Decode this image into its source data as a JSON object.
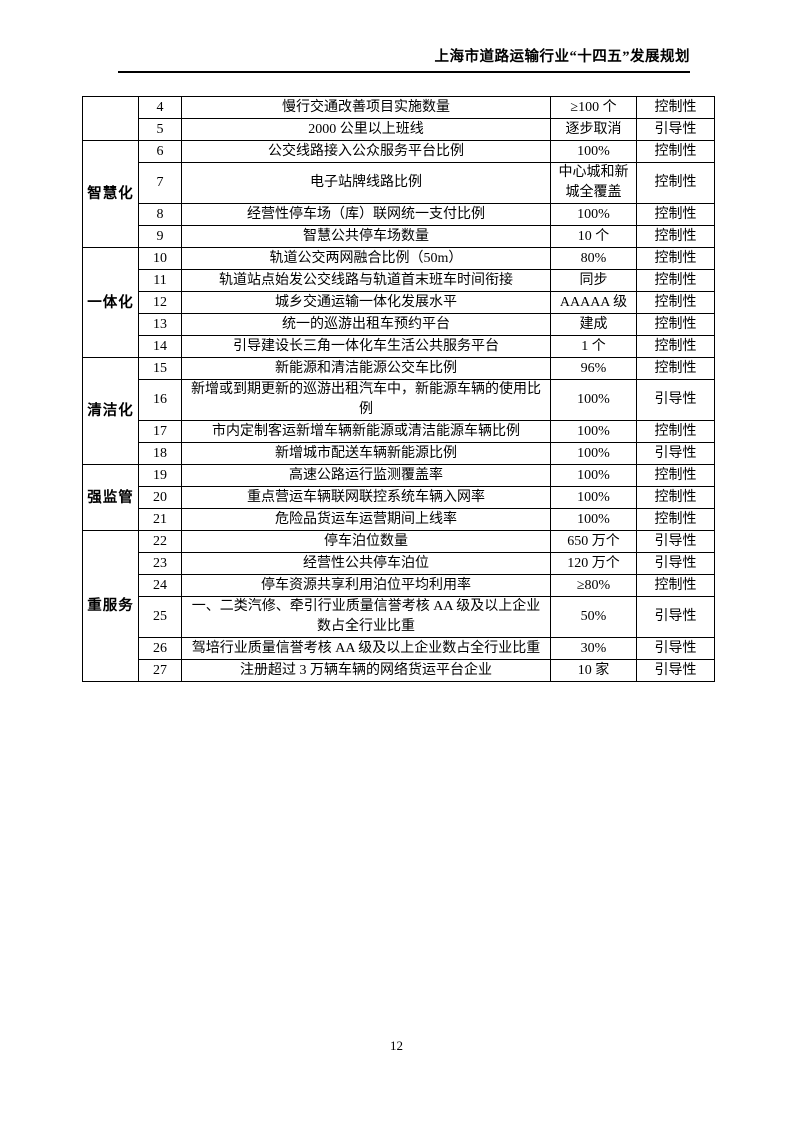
{
  "header": {
    "title": "上海市道路运输行业“十四五”发展规划"
  },
  "table": {
    "groups": [
      {
        "category": "",
        "rows": [
          {
            "no": "4",
            "item": "慢行交通改善项目实施数量",
            "target": "≥100 个",
            "type": "控制性"
          },
          {
            "no": "5",
            "item": "2000 公里以上班线",
            "target": "逐步取消",
            "type": "引导性"
          }
        ]
      },
      {
        "category": "智慧化",
        "rows": [
          {
            "no": "6",
            "item": "公交线路接入公众服务平台比例",
            "target": "100%",
            "type": "控制性"
          },
          {
            "no": "7",
            "item": "电子站牌线路比例",
            "target": "中心城和新城全覆盖",
            "type": "控制性"
          },
          {
            "no": "8",
            "item": "经营性停车场（库）联网统一支付比例",
            "target": "100%",
            "type": "控制性"
          },
          {
            "no": "9",
            "item": "智慧公共停车场数量",
            "target": "10 个",
            "type": "控制性"
          }
        ]
      },
      {
        "category": "一体化",
        "rows": [
          {
            "no": "10",
            "item": "轨道公交两网融合比例（50m）",
            "target": "80%",
            "type": "控制性"
          },
          {
            "no": "11",
            "item": "轨道站点始发公交线路与轨道首末班车时间衔接",
            "target": "同步",
            "type": "控制性"
          },
          {
            "no": "12",
            "item": "城乡交通运输一体化发展水平",
            "target": "AAAAA 级",
            "type": "控制性"
          },
          {
            "no": "13",
            "item": "统一的巡游出租车预约平台",
            "target": "建成",
            "type": "控制性"
          },
          {
            "no": "14",
            "item": "引导建设长三角一体化车生活公共服务平台",
            "target": "1 个",
            "type": "控制性"
          }
        ]
      },
      {
        "category": "清洁化",
        "rows": [
          {
            "no": "15",
            "item": "新能源和清洁能源公交车比例",
            "target": "96%",
            "type": "控制性"
          },
          {
            "no": "16",
            "item": "新增或到期更新的巡游出租汽车中，新能源车辆的使用比例",
            "target": "100%",
            "type": "引导性"
          },
          {
            "no": "17",
            "item": "市内定制客运新增车辆新能源或清洁能源车辆比例",
            "target": "100%",
            "type": "控制性"
          },
          {
            "no": "18",
            "item": "新增城市配送车辆新能源比例",
            "target": "100%",
            "type": "引导性"
          }
        ]
      },
      {
        "category": "强监管",
        "rows": [
          {
            "no": "19",
            "item": "高速公路运行监测覆盖率",
            "target": "100%",
            "type": "控制性"
          },
          {
            "no": "20",
            "item": "重点营运车辆联网联控系统车辆入网率",
            "target": "100%",
            "type": "控制性"
          },
          {
            "no": "21",
            "item": "危险品货运车运营期间上线率",
            "target": "100%",
            "type": "控制性"
          }
        ]
      },
      {
        "category": "重服务",
        "rows": [
          {
            "no": "22",
            "item": "停车泊位数量",
            "target": "650 万个",
            "type": "引导性"
          },
          {
            "no": "23",
            "item": "经营性公共停车泊位",
            "target": "120 万个",
            "type": "引导性"
          },
          {
            "no": "24",
            "item": "停车资源共享利用泊位平均利用率",
            "target": "≥80%",
            "type": "控制性"
          },
          {
            "no": "25",
            "item": "一、二类汽修、牵引行业质量信誉考核 AA 级及以上企业数占全行业比重",
            "target": "50%",
            "type": "引导性"
          },
          {
            "no": "26",
            "item": "驾培行业质量信誉考核 AA 级及以上企业数占全行业比重",
            "target": "30%",
            "type": "引导性"
          },
          {
            "no": "27",
            "item": "注册超过 3 万辆车辆的网络货运平台企业",
            "target": "10 家",
            "type": "引导性"
          }
        ]
      }
    ]
  },
  "footer": {
    "page_number": "12"
  }
}
